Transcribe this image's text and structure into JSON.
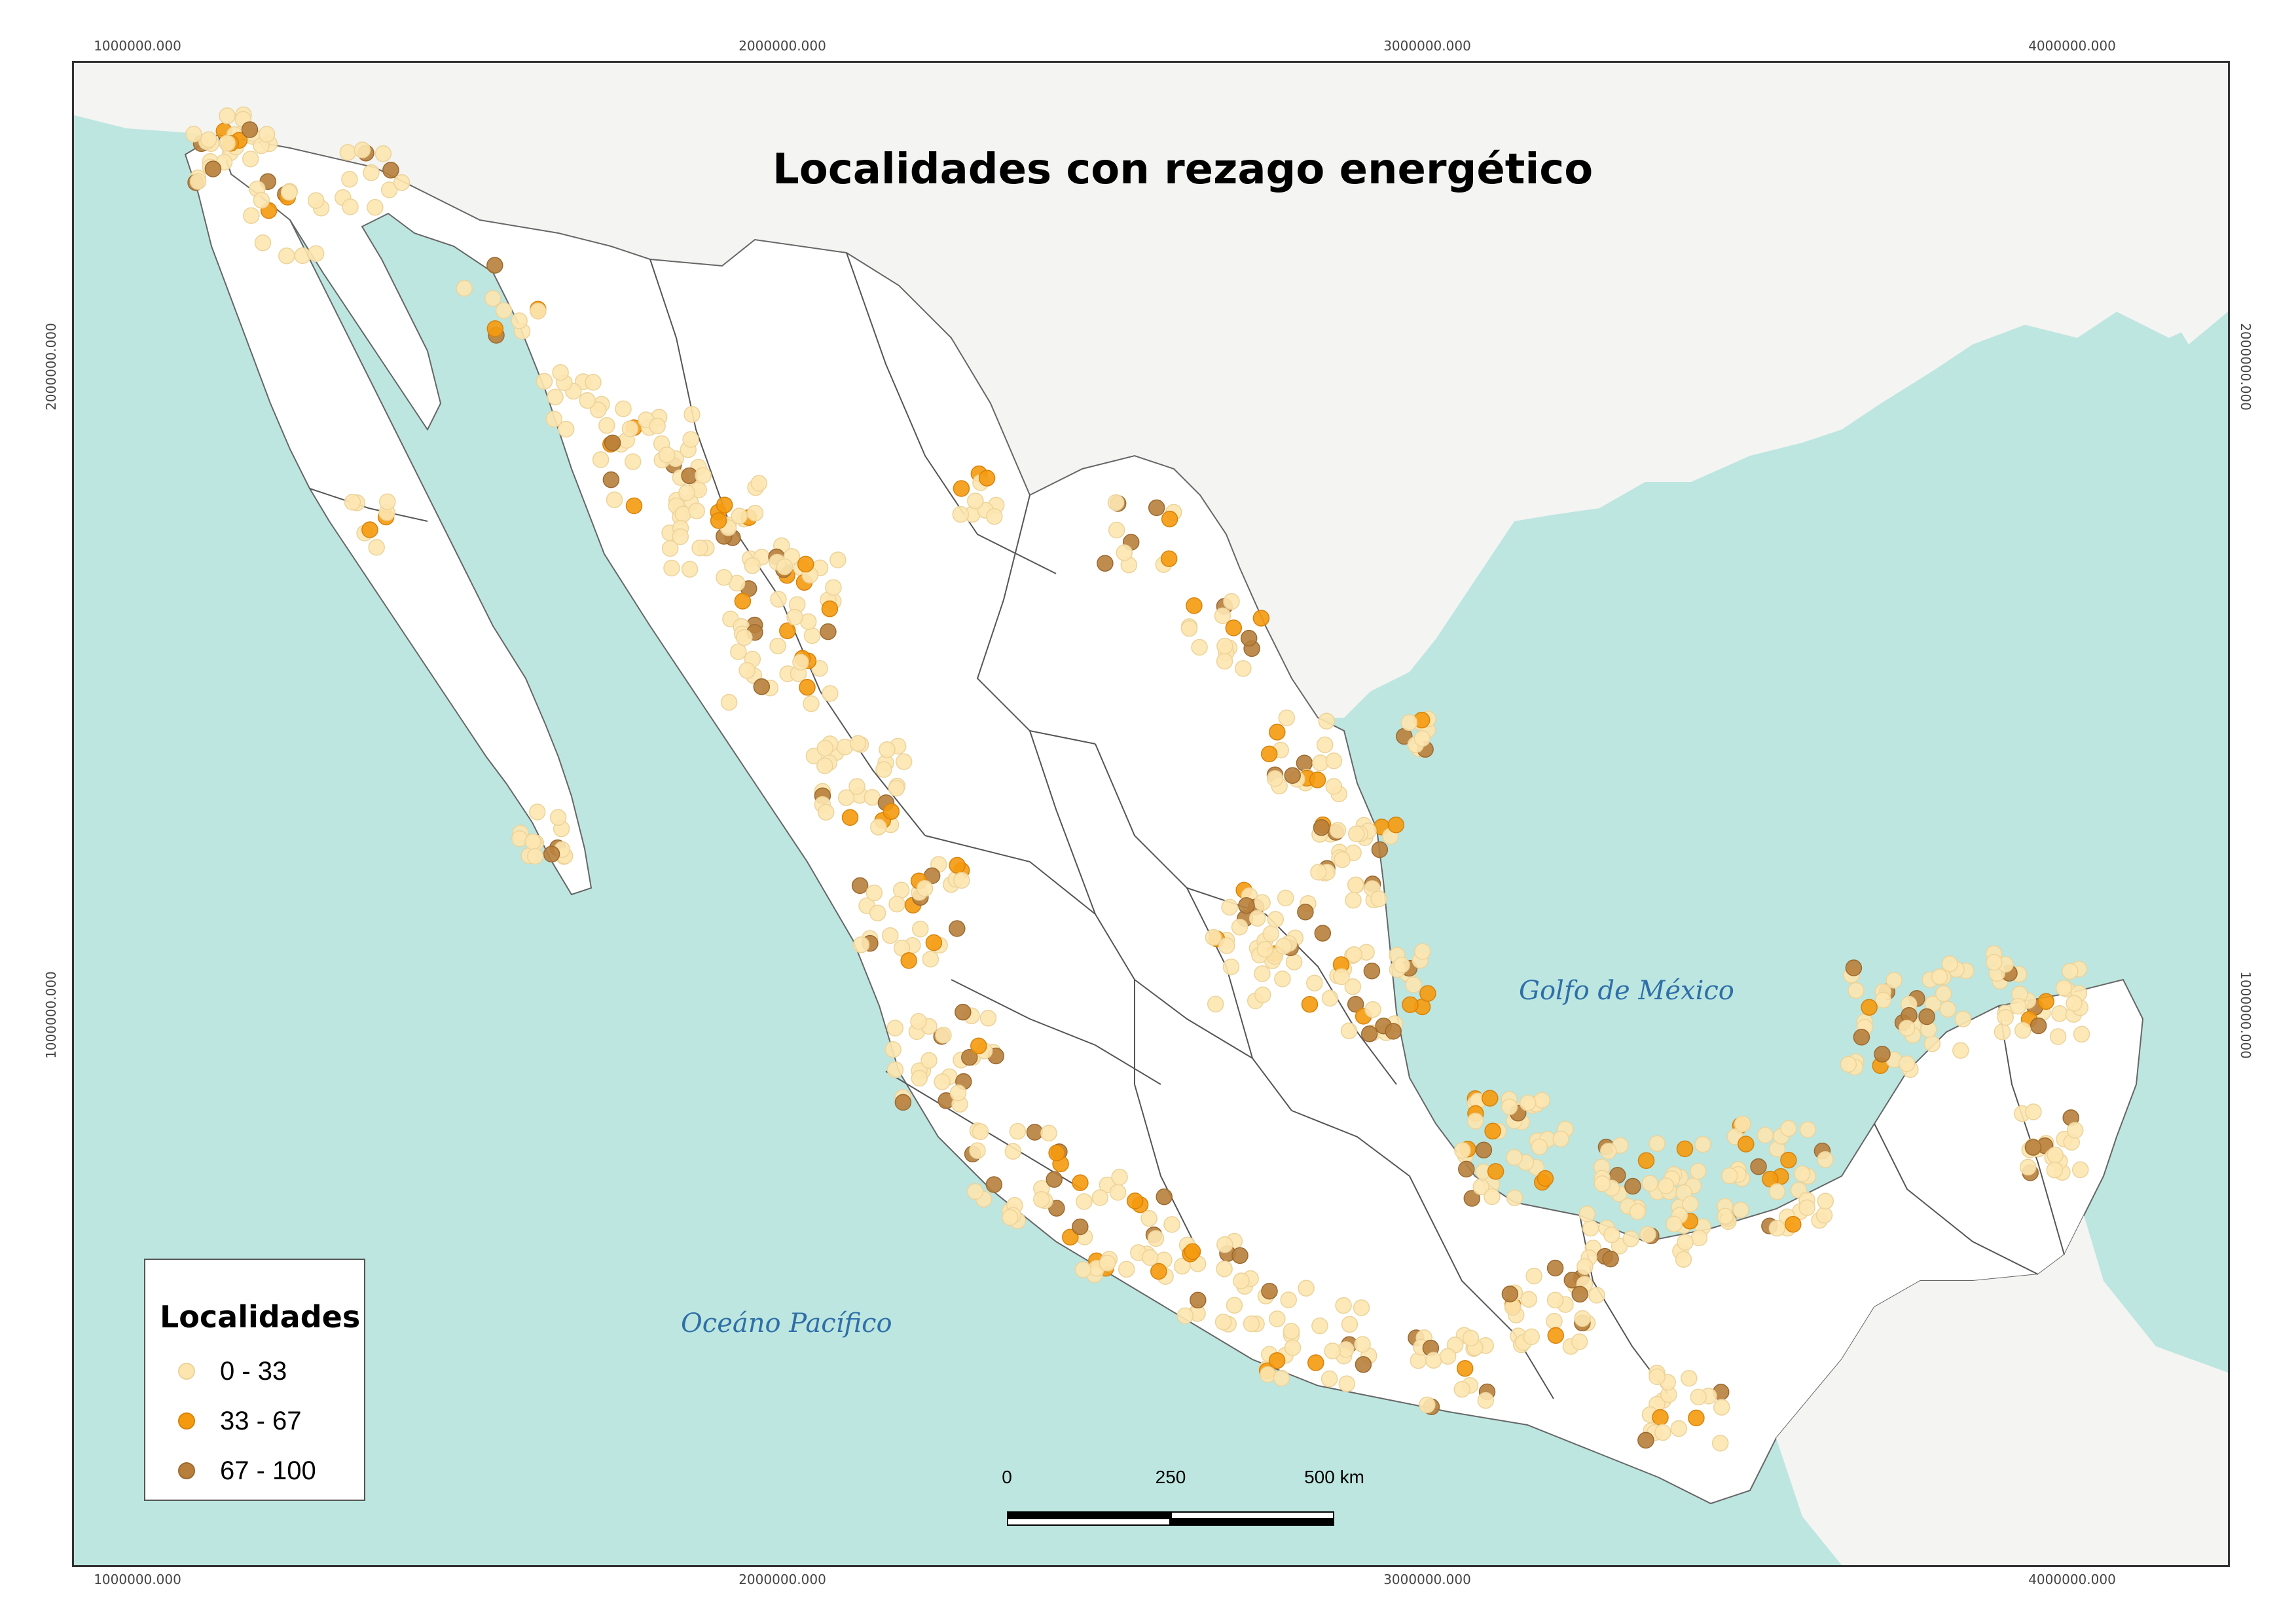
{
  "title": "Localidades con rezago energético",
  "coordinates": {
    "top": [
      "1000000.000",
      "2000000.000",
      "3000000.000",
      "4000000.000"
    ],
    "bottom": [
      "1000000.000",
      "2000000.000",
      "3000000.000",
      "4000000.000"
    ],
    "left": [
      "2000000.000",
      "1000000.000"
    ],
    "right": [
      "2000000.000",
      "1000000.000"
    ]
  },
  "sea_labels": {
    "gulf": "Golfo de México",
    "pacific": "Oceáno Pacífico"
  },
  "legend": {
    "title": "Localidades",
    "items": [
      {
        "label": "0 - 33",
        "color": "#fde5b0"
      },
      {
        "label": "33 - 67",
        "color": "#f59a0e"
      },
      {
        "label": "67 - 100",
        "color": "#b87f3c"
      }
    ]
  },
  "scale_bar": {
    "ticks": [
      "0",
      "250",
      "500 km"
    ]
  },
  "colors": {
    "water": "#bde6e0",
    "land": "#ffffff",
    "border": "#333333"
  }
}
